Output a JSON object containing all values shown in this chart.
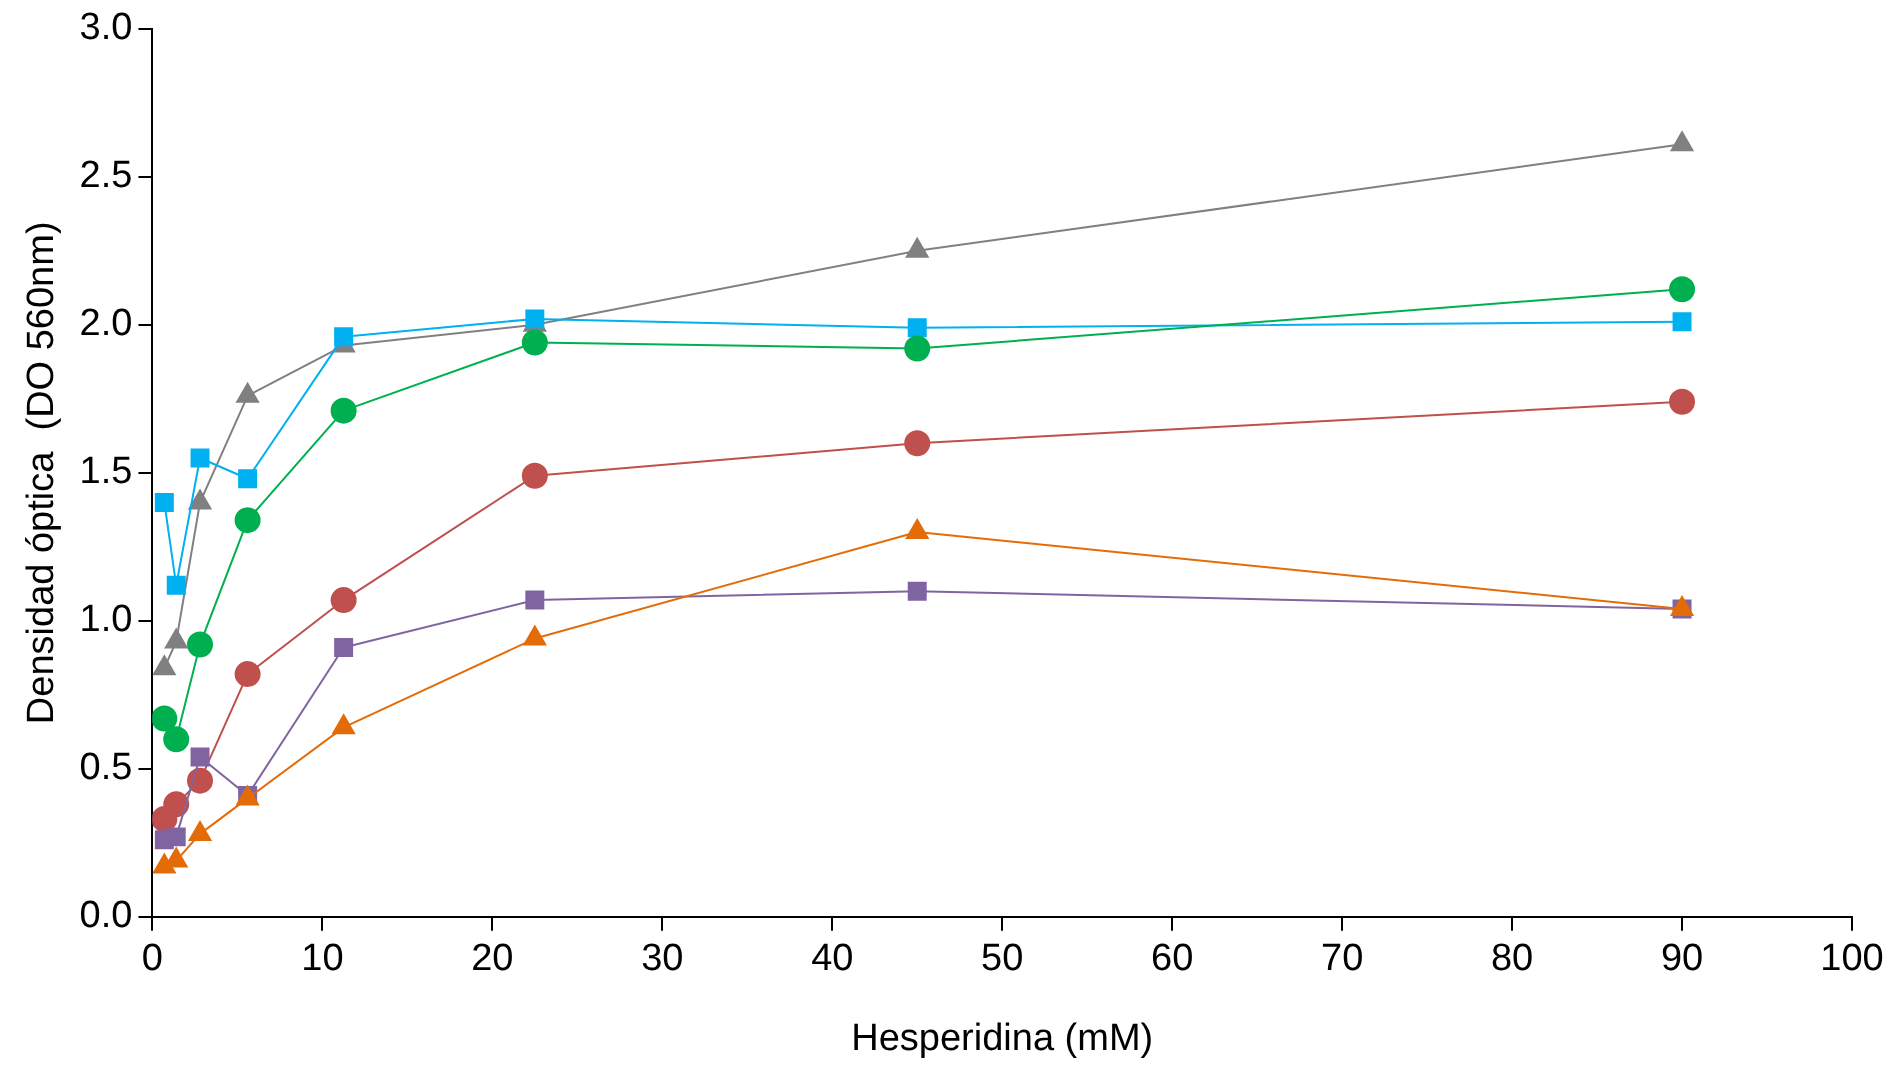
{
  "chart_data": {
    "type": "line",
    "xlabel": "Hesperidina (mM)",
    "ylabel": "Densidad óptica  (DO 560nm)",
    "x": [
      0.7,
      1.4,
      2.8,
      5.6,
      11.25,
      22.5,
      45,
      90
    ],
    "xlim": [
      0,
      100
    ],
    "xticks": [
      0,
      10,
      20,
      30,
      40,
      50,
      60,
      70,
      80,
      90,
      100
    ],
    "ylim": [
      0,
      3
    ],
    "yticks": [
      {
        "value": 0,
        "label": "0.0"
      },
      {
        "value": 0.5,
        "label": "0.5"
      },
      {
        "value": 1,
        "label": "1.0"
      },
      {
        "value": 1.5,
        "label": "1.5"
      },
      {
        "value": 2,
        "label": "2.0"
      },
      {
        "value": 2.5,
        "label": "2.5"
      },
      {
        "value": 3,
        "label": "3.0"
      }
    ],
    "grid": false,
    "legend": false,
    "series": [
      {
        "color": "#808080",
        "marker": "triangle",
        "values": [
          0.84,
          0.93,
          1.4,
          1.76,
          1.93,
          2.0,
          2.25,
          2.61
        ]
      },
      {
        "color": "#00b0f0",
        "marker": "square",
        "values": [
          1.4,
          1.12,
          1.55,
          1.48,
          1.96,
          2.02,
          1.99,
          2.01
        ]
      },
      {
        "color": "#00b050",
        "marker": "circle",
        "values": [
          0.67,
          0.6,
          0.92,
          1.34,
          1.71,
          1.94,
          1.92,
          2.12
        ]
      },
      {
        "color": "#c0504d",
        "marker": "circle",
        "values": [
          0.33,
          0.38,
          0.46,
          0.82,
          1.07,
          1.49,
          1.6,
          1.74
        ]
      },
      {
        "color": "#8064a2",
        "marker": "square",
        "values": [
          0.26,
          0.27,
          0.54,
          0.41,
          0.91,
          1.07,
          1.1,
          1.04
        ]
      },
      {
        "color": "#e36c09",
        "marker": "triangle",
        "values": [
          0.17,
          0.19,
          0.28,
          0.4,
          0.64,
          0.94,
          1.3,
          1.04
        ]
      }
    ]
  }
}
